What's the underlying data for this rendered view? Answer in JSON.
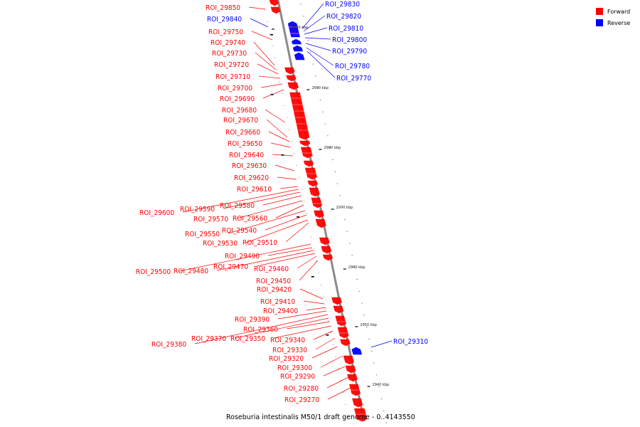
{
  "legend": {
    "forward_label": "Forward",
    "reverse_label": "Reverse",
    "forward_color": "#ff0000",
    "reverse_color": "#0000ff"
  },
  "caption": "Roseburia intestinalis M50/1 draft genome - 0..4143550",
  "scale_ticks": [
    "3000 kbp",
    "2990 kbp",
    "2980 kbp",
    "2970 kbp",
    "2960 kbp",
    "2950 kbp",
    "2940 kbp"
  ],
  "features_forward": [
    "ROI_29850",
    "ROI_29750",
    "ROI_29740",
    "ROI_29730",
    "ROI_29720",
    "ROI_29710",
    "ROI_29700",
    "ROI_29690",
    "ROI_29680",
    "ROI_29670",
    "ROI_29660",
    "ROI_29650",
    "ROI_29640",
    "ROI_29630",
    "ROI_29620",
    "ROI_29610",
    "ROI_29600",
    "ROI_29590",
    "ROI_29580",
    "ROI_29570",
    "ROI_29560",
    "ROI_29550",
    "ROI_29540",
    "ROI_29530",
    "ROI_29510",
    "ROI_29500",
    "ROI_29490",
    "ROI_29480",
    "ROI_29470",
    "ROI_29460",
    "ROI_29450",
    "ROI_29420",
    "ROI_29410",
    "ROI_29400",
    "ROI_29390",
    "ROI_29380",
    "ROI_29370",
    "ROI_29360",
    "ROI_29350",
    "ROI_29340",
    "ROI_29330",
    "ROI_29320",
    "ROI_29300",
    "ROI_29290",
    "ROI_29280",
    "ROI_29270"
  ],
  "features_reverse": [
    "ROI_29840",
    "ROI_29830",
    "ROI_29820",
    "ROI_29810",
    "ROI_29800",
    "ROI_29790",
    "ROI_29780",
    "ROI_29770",
    "ROI_29310"
  ]
}
